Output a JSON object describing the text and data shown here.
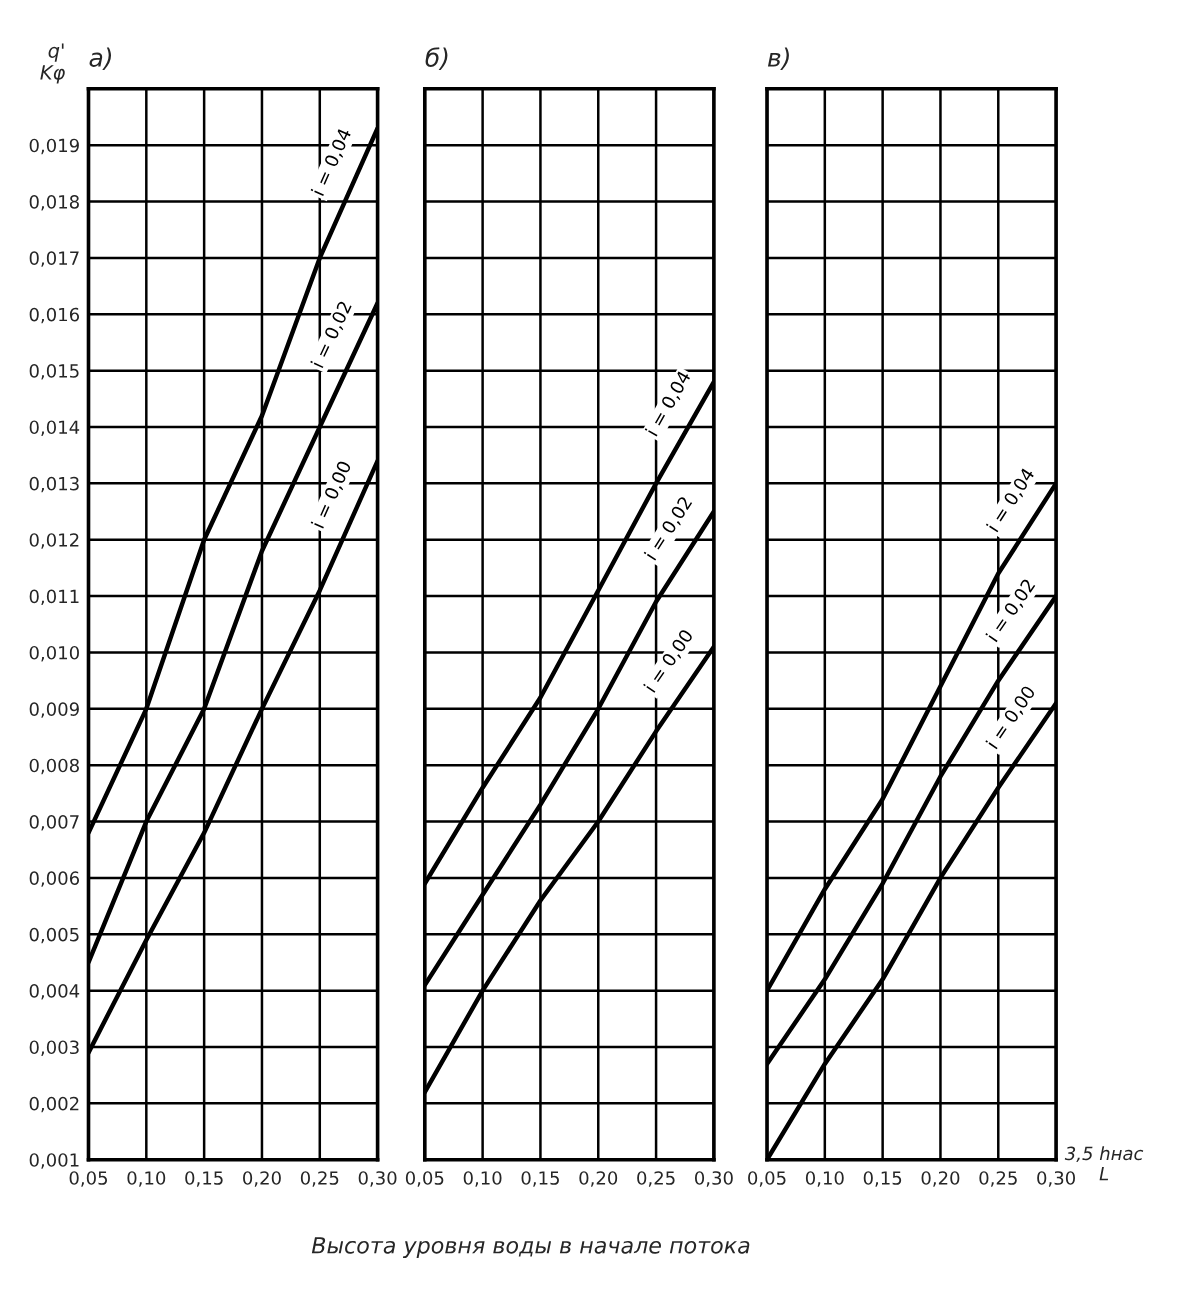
{
  "chart_data": [
    {
      "type": "line",
      "title": "а)",
      "ylabel": "q'\nKφ",
      "x": [
        0.05,
        0.1,
        0.15,
        0.2,
        0.25,
        0.3
      ],
      "series": [
        {
          "name": "i = 0,04",
          "color": "#000000",
          "values": [
            0.0068,
            0.009,
            0.012,
            0.0142,
            0.017,
            0.0193
          ]
        },
        {
          "name": "i = 0,02",
          "color": "#000000",
          "values": [
            0.0045,
            0.007,
            0.009,
            0.0118,
            0.014,
            0.0162
          ]
        },
        {
          "name": "i = 0,00",
          "color": "#000000",
          "values": [
            0.0029,
            0.0049,
            0.0068,
            0.009,
            0.0111,
            0.0134
          ]
        }
      ],
      "xlim": [
        0.05,
        0.3
      ],
      "ylim": [
        0.001,
        0.02
      ],
      "xticks": [
        {
          "value": 0.05,
          "label": "0,05"
        },
        {
          "value": 0.1,
          "label": "0,10"
        },
        {
          "value": 0.15,
          "label": "0,15"
        },
        {
          "value": 0.2,
          "label": "0,20"
        },
        {
          "value": 0.25,
          "label": "0,25"
        },
        {
          "value": 0.3,
          "label": "0,30"
        }
      ],
      "yticks": [
        {
          "value": 0.001,
          "label": "0,001"
        },
        {
          "value": 0.002,
          "label": "0,002"
        },
        {
          "value": 0.003,
          "label": "0,003"
        },
        {
          "value": 0.004,
          "label": "0,004"
        },
        {
          "value": 0.005,
          "label": "0,005"
        },
        {
          "value": 0.006,
          "label": "0,006"
        },
        {
          "value": 0.007,
          "label": "0,007"
        },
        {
          "value": 0.008,
          "label": "0,008"
        },
        {
          "value": 0.009,
          "label": "0,009"
        },
        {
          "value": 0.01,
          "label": "0,010"
        },
        {
          "value": 0.011,
          "label": "0,011"
        },
        {
          "value": 0.012,
          "label": "0,012"
        },
        {
          "value": 0.013,
          "label": "0,013"
        },
        {
          "value": 0.014,
          "label": "0,014"
        },
        {
          "value": 0.015,
          "label": "0,015"
        },
        {
          "value": 0.016,
          "label": "0,016"
        },
        {
          "value": 0.017,
          "label": "0,017"
        },
        {
          "value": 0.018,
          "label": "0,018"
        },
        {
          "value": 0.019,
          "label": "0,019"
        },
        {
          "value": 0.02,
          "label": null
        }
      ],
      "grid": true,
      "marker": "none",
      "line_style": "solid",
      "legend": false,
      "annotations": [
        "Высота уровня воды в начале потока"
      ]
    },
    {
      "type": "line",
      "title": "б)",
      "x": [
        0.05,
        0.1,
        0.15,
        0.2,
        0.25,
        0.3
      ],
      "series": [
        {
          "name": "i = 0,04",
          "color": "#000000",
          "values": [
            0.0059,
            0.0076,
            0.0092,
            0.0111,
            0.013,
            0.0148
          ]
        },
        {
          "name": "i = 0,02",
          "color": "#000000",
          "values": [
            0.0041,
            0.0057,
            0.0073,
            0.009,
            0.0109,
            0.0125
          ]
        },
        {
          "name": "i = 0,00",
          "color": "#000000",
          "values": [
            0.0022,
            0.004,
            0.0056,
            0.007,
            0.0086,
            0.0101
          ]
        }
      ],
      "xlim": [
        0.05,
        0.3
      ],
      "ylim": [
        0.001,
        0.02
      ],
      "xticks": [
        {
          "value": 0.05,
          "label": "0,05"
        },
        {
          "value": 0.1,
          "label": "0,10"
        },
        {
          "value": 0.15,
          "label": "0,15"
        },
        {
          "value": 0.2,
          "label": "0,20"
        },
        {
          "value": 0.25,
          "label": "0,25"
        },
        {
          "value": 0.3,
          "label": "0,30"
        }
      ],
      "yticks": [
        0.001,
        0.002,
        0.003,
        0.004,
        0.005,
        0.006,
        0.007,
        0.008,
        0.009,
        0.01,
        0.011,
        0.012,
        0.013,
        0.014,
        0.015,
        0.016,
        0.017,
        0.018,
        0.019,
        0.02
      ],
      "tick_labels": "x",
      "grid": true,
      "marker": "none",
      "line_style": "solid",
      "legend": false
    },
    {
      "type": "line",
      "title": "в)",
      "xlabel": "3,5 hнас\nL",
      "x": [
        0.05,
        0.1,
        0.15,
        0.2,
        0.25,
        0.3
      ],
      "series": [
        {
          "name": "i = 0,04",
          "color": "#000000",
          "values": [
            0.004,
            0.0058,
            0.0074,
            0.0094,
            0.0114,
            0.013
          ]
        },
        {
          "name": "i = 0,02",
          "color": "#000000",
          "values": [
            0.0027,
            0.0042,
            0.0059,
            0.0078,
            0.0095,
            0.011
          ]
        },
        {
          "name": "i = 0,00",
          "color": "#000000",
          "values": [
            0.001,
            0.0027,
            0.0042,
            0.006,
            0.0076,
            0.0091
          ]
        }
      ],
      "xlim": [
        0.05,
        0.3
      ],
      "ylim": [
        0.001,
        0.02
      ],
      "xticks": [
        {
          "value": 0.05,
          "label": "0,05"
        },
        {
          "value": 0.1,
          "label": "0,10"
        },
        {
          "value": 0.15,
          "label": "0,15"
        },
        {
          "value": 0.2,
          "label": "0,20"
        },
        {
          "value": 0.25,
          "label": "0,25"
        },
        {
          "value": 0.3,
          "label": "0,30"
        }
      ],
      "yticks": [
        0.001,
        0.002,
        0.003,
        0.004,
        0.005,
        0.006,
        0.007,
        0.008,
        0.009,
        0.01,
        0.011,
        0.012,
        0.013,
        0.014,
        0.015,
        0.016,
        0.017,
        0.018,
        0.019,
        0.02
      ],
      "tick_labels": "x",
      "grid": true,
      "marker": "none",
      "line_style": "solid",
      "legend": false
    }
  ]
}
